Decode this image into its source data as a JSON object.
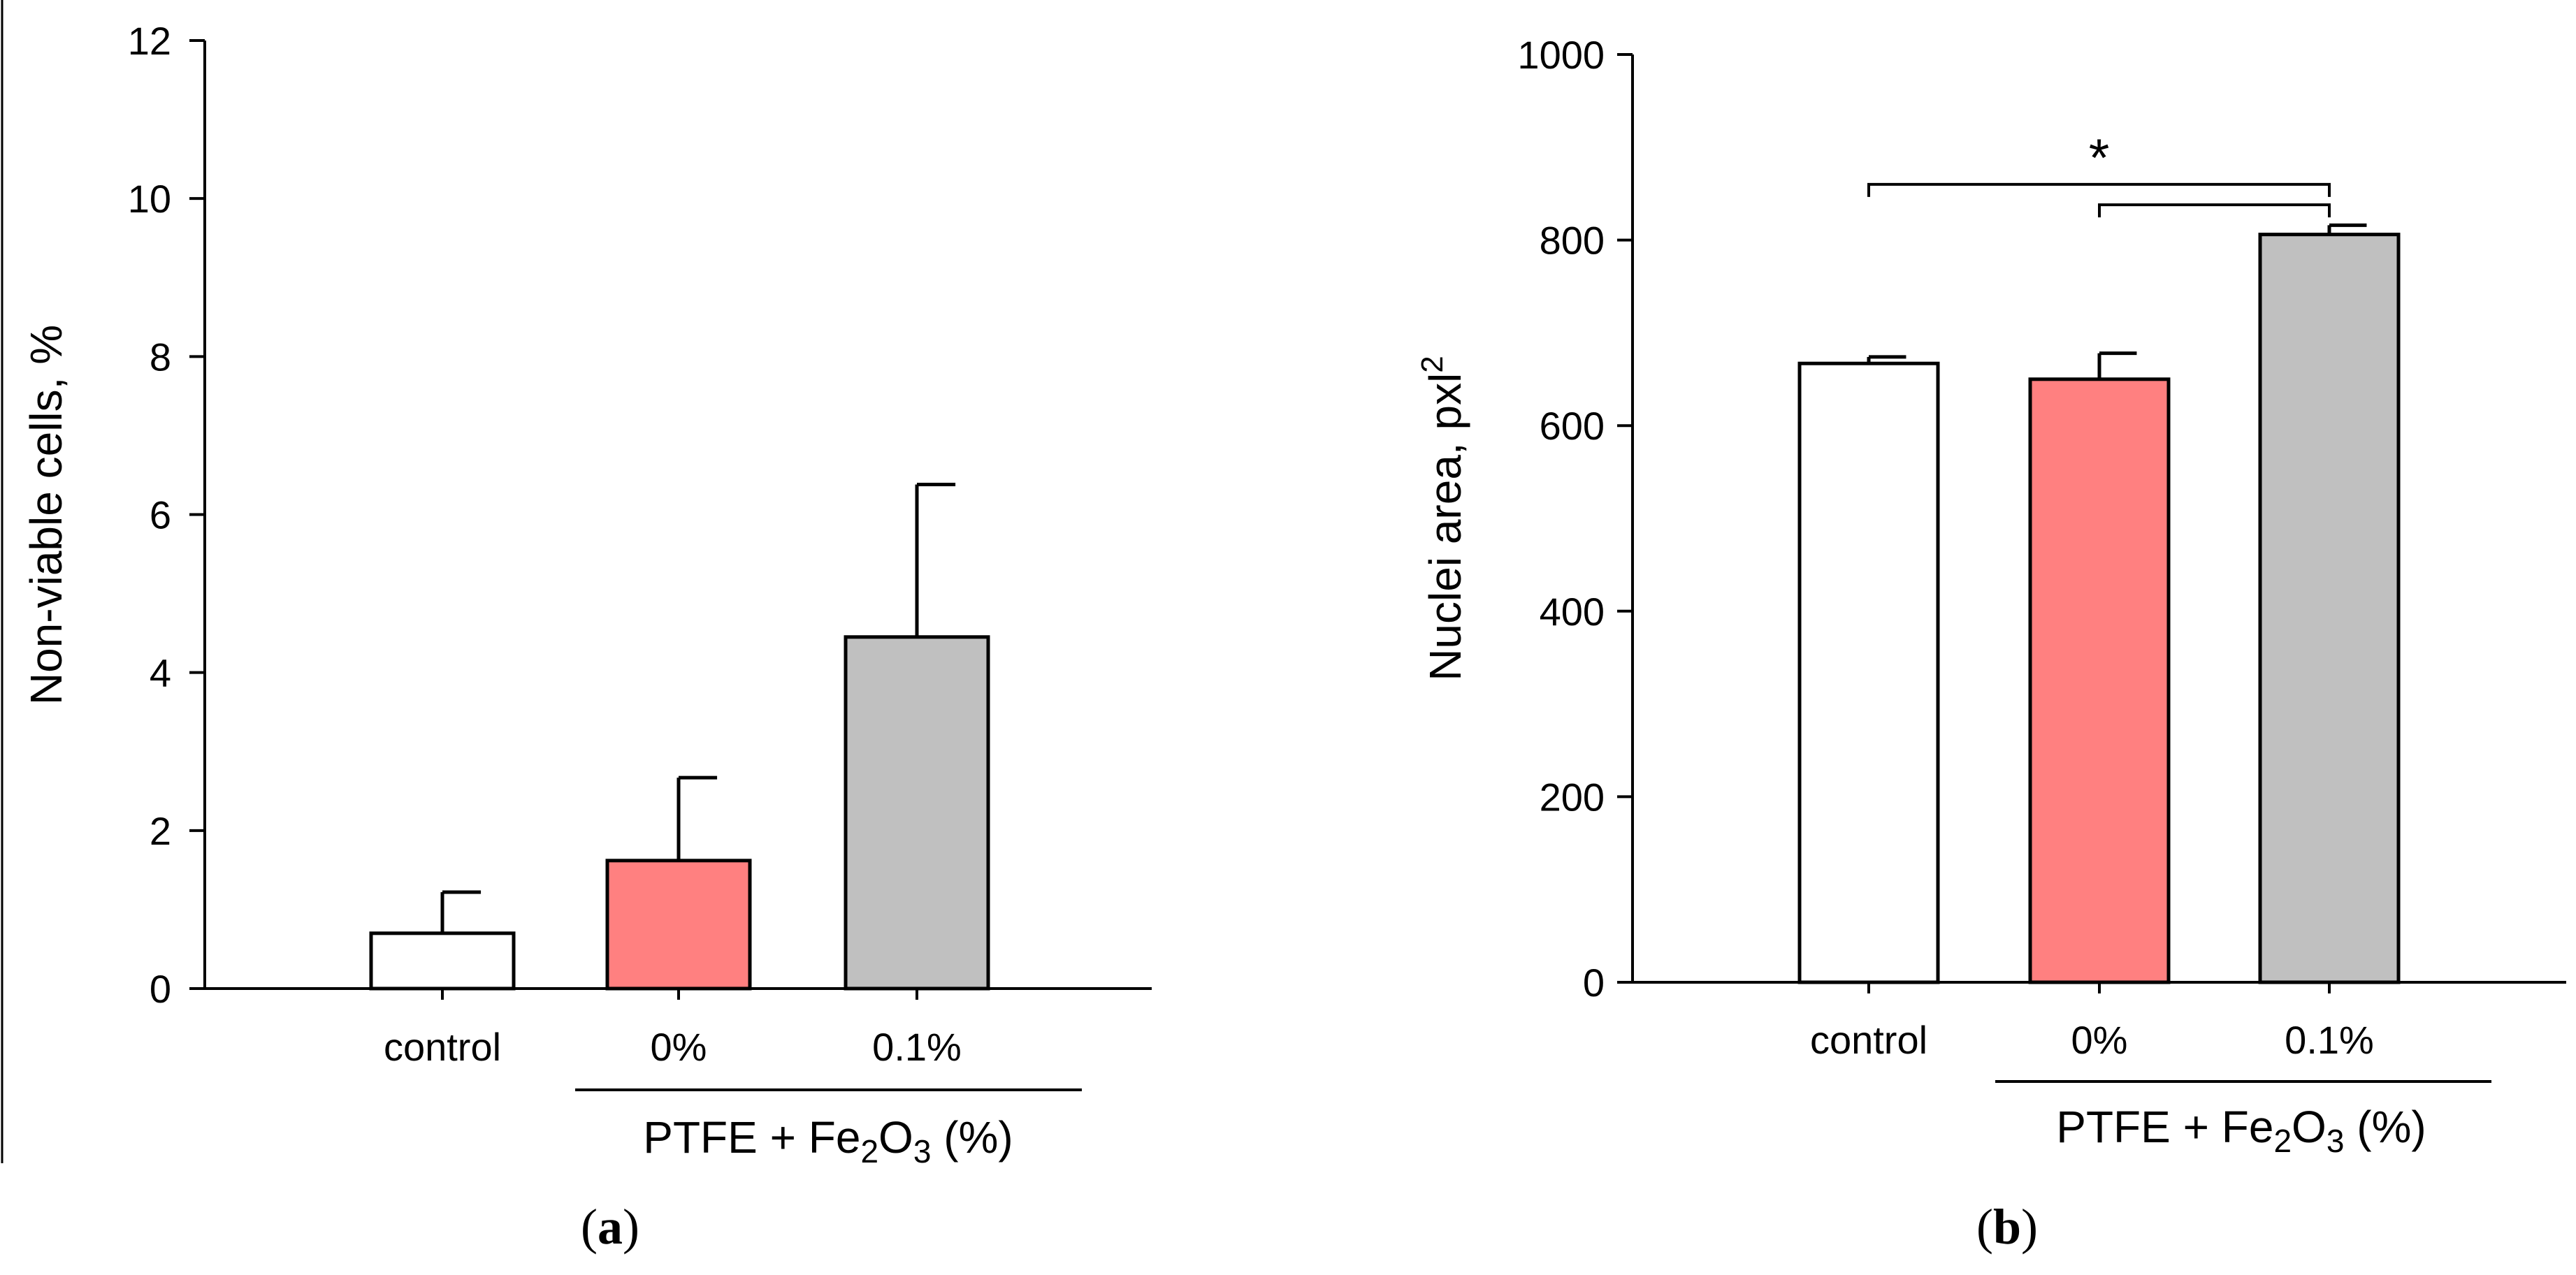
{
  "figure": {
    "panel_a_letter": "a",
    "panel_b_letter": "b"
  },
  "chart_data": [
    {
      "type": "bar",
      "panel": "a",
      "ylabel": "Non-viable cells, %",
      "xlabel": "",
      "ylim": [
        0,
        12
      ],
      "yticks": [
        0,
        2,
        4,
        6,
        8,
        10,
        12
      ],
      "categories": [
        "control",
        "0%",
        "0.1%"
      ],
      "values": [
        0.7,
        1.62,
        4.45
      ],
      "errors": [
        0.52,
        1.05,
        1.93
      ],
      "colors": [
        "#ffffff",
        "#ff8080",
        "#c0c0c0"
      ],
      "group_label": {
        "prefix": "PTFE + Fe",
        "sub1": "2",
        "mid": "O",
        "sub2": "3",
        "suffix": " (%)"
      },
      "significance": []
    },
    {
      "type": "bar",
      "panel": "b",
      "ylabel": "Nuclei area, pxl",
      "ylabel_sup": "2",
      "xlabel": "",
      "ylim": [
        0,
        1000
      ],
      "yticks": [
        0,
        200,
        400,
        600,
        800,
        1000
      ],
      "categories": [
        "control",
        "0%",
        "0.1%"
      ],
      "values": [
        667,
        650,
        806
      ],
      "errors": [
        7,
        28,
        10
      ],
      "colors": [
        "#ffffff",
        "#ff8080",
        "#c0c0c0"
      ],
      "group_label": {
        "prefix": "PTFE + Fe",
        "sub1": "2",
        "mid": "O",
        "sub2": "3",
        "suffix": " (%)"
      },
      "significance": [
        {
          "from": 0,
          "to": 2,
          "y": 860
        },
        {
          "from": 1,
          "to": 2,
          "y": 838
        }
      ],
      "significance_symbol": "*"
    }
  ]
}
